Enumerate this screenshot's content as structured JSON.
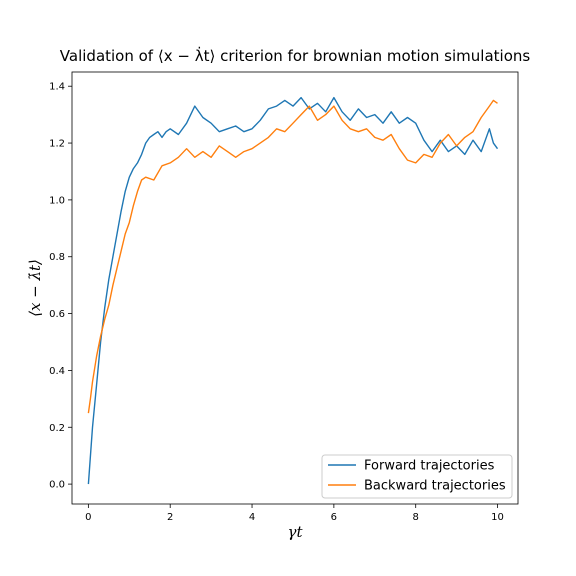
{
  "chart_data": {
    "type": "line",
    "title": "Validation of ⟨x − λ̇t⟩ criterion for brownian motion simulations",
    "xlabel": "γt",
    "ylabel": "⟨x − λ̇t⟩",
    "xlim": [
      -0.4,
      10.5
    ],
    "ylim": [
      -0.07,
      1.45
    ],
    "x_ticks": [
      0,
      2,
      4,
      6,
      8,
      10
    ],
    "x_tick_labels": [
      "0",
      "2",
      "4",
      "6",
      "8",
      "10"
    ],
    "y_ticks": [
      0.0,
      0.2,
      0.4,
      0.6,
      0.8,
      1.0,
      1.2,
      1.4
    ],
    "y_tick_labels": [
      "0.0",
      "0.2",
      "0.4",
      "0.6",
      "0.8",
      "1.0",
      "1.2",
      "1.4"
    ],
    "grid": false,
    "legend_position": "lower-right",
    "series": [
      {
        "name": "Forward trajectories",
        "color": "#1f77b4",
        "x": [
          0,
          0.1,
          0.2,
          0.3,
          0.4,
          0.5,
          0.6,
          0.7,
          0.8,
          0.9,
          1.0,
          1.1,
          1.2,
          1.3,
          1.4,
          1.5,
          1.6,
          1.7,
          1.8,
          1.9,
          2.0,
          2.2,
          2.4,
          2.6,
          2.8,
          3.0,
          3.2,
          3.4,
          3.6,
          3.8,
          4.0,
          4.2,
          4.4,
          4.6,
          4.8,
          5.0,
          5.2,
          5.4,
          5.6,
          5.8,
          6.0,
          6.2,
          6.4,
          6.6,
          6.8,
          7.0,
          7.2,
          7.4,
          7.6,
          7.8,
          8.0,
          8.2,
          8.4,
          8.6,
          8.8,
          9.0,
          9.2,
          9.4,
          9.6,
          9.8,
          9.9,
          10.0
        ],
        "y": [
          0.0,
          0.2,
          0.35,
          0.5,
          0.62,
          0.72,
          0.8,
          0.88,
          0.96,
          1.03,
          1.08,
          1.11,
          1.13,
          1.16,
          1.2,
          1.22,
          1.23,
          1.24,
          1.22,
          1.24,
          1.25,
          1.23,
          1.27,
          1.33,
          1.29,
          1.27,
          1.24,
          1.25,
          1.26,
          1.24,
          1.25,
          1.28,
          1.32,
          1.33,
          1.35,
          1.33,
          1.36,
          1.32,
          1.34,
          1.31,
          1.36,
          1.31,
          1.28,
          1.32,
          1.29,
          1.3,
          1.27,
          1.31,
          1.27,
          1.29,
          1.27,
          1.21,
          1.17,
          1.21,
          1.17,
          1.19,
          1.16,
          1.21,
          1.17,
          1.25,
          1.2,
          1.18
        ]
      },
      {
        "name": "Backward trajectories",
        "color": "#ff7f0e",
        "x": [
          0,
          0.05,
          0.1,
          0.2,
          0.3,
          0.4,
          0.5,
          0.6,
          0.7,
          0.8,
          0.9,
          1.0,
          1.1,
          1.2,
          1.3,
          1.4,
          1.6,
          1.8,
          2.0,
          2.2,
          2.4,
          2.6,
          2.8,
          3.0,
          3.2,
          3.4,
          3.6,
          3.8,
          4.0,
          4.2,
          4.4,
          4.6,
          4.8,
          5.0,
          5.2,
          5.4,
          5.6,
          5.8,
          6.0,
          6.2,
          6.4,
          6.6,
          6.8,
          7.0,
          7.2,
          7.4,
          7.6,
          7.8,
          8.0,
          8.2,
          8.4,
          8.6,
          8.8,
          9.0,
          9.2,
          9.4,
          9.6,
          9.8,
          9.9,
          10.0
        ],
        "y": [
          0.25,
          0.3,
          0.36,
          0.45,
          0.52,
          0.58,
          0.63,
          0.7,
          0.76,
          0.82,
          0.88,
          0.92,
          0.98,
          1.03,
          1.07,
          1.08,
          1.07,
          1.12,
          1.13,
          1.15,
          1.18,
          1.15,
          1.17,
          1.15,
          1.19,
          1.17,
          1.15,
          1.17,
          1.18,
          1.2,
          1.22,
          1.25,
          1.24,
          1.27,
          1.3,
          1.33,
          1.28,
          1.3,
          1.33,
          1.28,
          1.25,
          1.24,
          1.25,
          1.22,
          1.21,
          1.23,
          1.18,
          1.14,
          1.13,
          1.16,
          1.15,
          1.2,
          1.23,
          1.19,
          1.22,
          1.24,
          1.29,
          1.33,
          1.35,
          1.34
        ]
      }
    ]
  }
}
